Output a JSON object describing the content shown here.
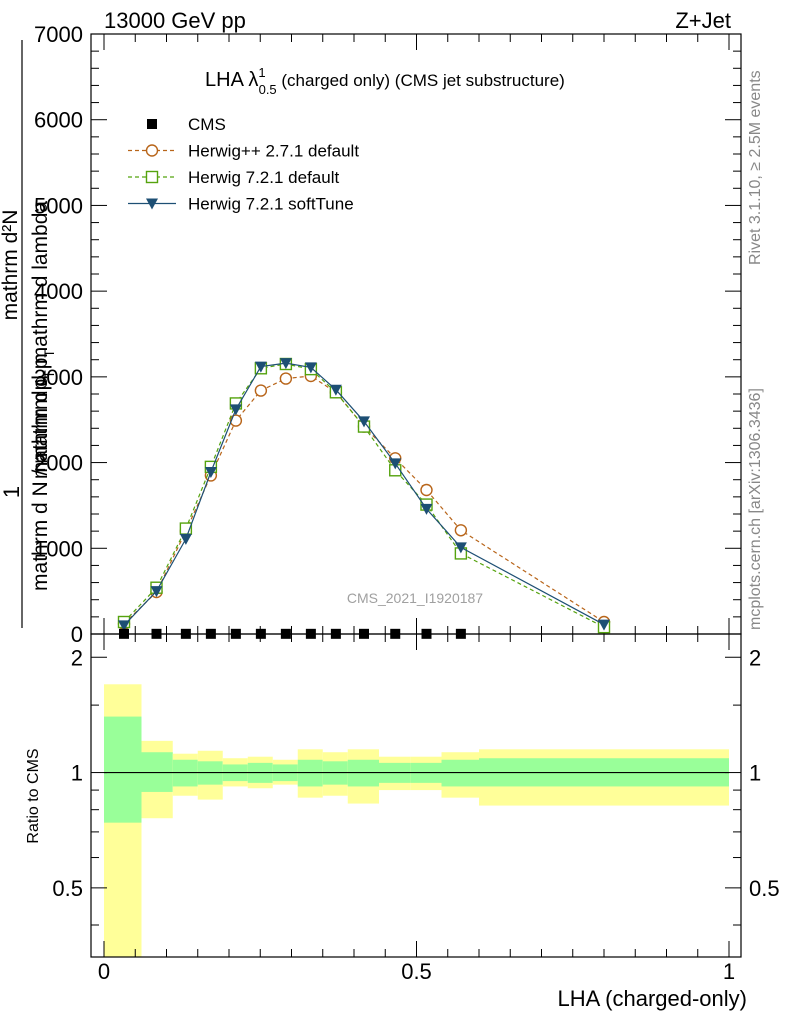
{
  "header": {
    "left": "13000 GeV pp",
    "right": "Z+Jet"
  },
  "side_labels": {
    "rivet": "Rivet 3.1.10, ≥ 2.5M events",
    "mcplots": "mcplots.cern.ch [arXiv:1306.3436]"
  },
  "watermark": "CMS_2021_I1920187",
  "chart_data": [
    {
      "type": "line",
      "title": {
        "prefix": "LHA λ",
        "sup": "1",
        "sub": "0.5",
        "suffix": " (charged only) (CMS jet substructure)"
      },
      "ylabel_one": "1",
      "ylabel_top": "mathrm d²N",
      "ylabel_top_tail": "mathrm dp",
      "ylabel_top_sub": "T",
      "ylabel_top_tail2": " mathrm d lambda",
      "ylabel_bottom": "mathrm d N / mathrm d p",
      "ylabel_bottom_sub": "T",
      "xlim": [
        0,
        1
      ],
      "ylim": [
        0,
        7000
      ],
      "yticks": [
        0,
        1000,
        2000,
        3000,
        4000,
        5000,
        6000,
        7000
      ],
      "ytick_labels": [
        "0",
        "1000",
        "2000",
        "3000",
        "4000",
        "5000",
        "6000",
        "7000"
      ],
      "legend": {
        "position": "top-left"
      },
      "series": [
        {
          "name": "CMS",
          "color": "#000000",
          "marker": "square-filled",
          "x": [
            0.032,
            0.084,
            0.131,
            0.171,
            0.211,
            0.251,
            0.291,
            0.331,
            0.371,
            0.416,
            0.466,
            0.516,
            0.571
          ],
          "y": [
            2,
            2,
            2,
            2,
            2,
            2,
            2,
            2,
            2,
            2,
            2,
            2,
            2
          ]
        },
        {
          "name": "Herwig++ 2.7.1 default",
          "color": "#b8651a",
          "marker": "circle-open",
          "dash": "4,3",
          "x": [
            0.032,
            0.084,
            0.131,
            0.171,
            0.211,
            0.251,
            0.291,
            0.331,
            0.371,
            0.416,
            0.466,
            0.516,
            0.571,
            0.8
          ],
          "y": [
            120,
            490,
            1200,
            1850,
            2490,
            2840,
            2980,
            3010,
            2820,
            2420,
            2050,
            1680,
            1210,
            140
          ]
        },
        {
          "name": "Herwig 7.2.1 default",
          "color": "#55a30e",
          "marker": "square-open",
          "dash": "4,3",
          "x": [
            0.032,
            0.084,
            0.131,
            0.171,
            0.211,
            0.251,
            0.291,
            0.331,
            0.371,
            0.416,
            0.466,
            0.516,
            0.571,
            0.8
          ],
          "y": [
            140,
            540,
            1230,
            1950,
            2690,
            3100,
            3150,
            3090,
            2820,
            2420,
            1910,
            1510,
            940,
            80
          ]
        },
        {
          "name": "Herwig 7.2.1 softTune",
          "color": "#1d4f74",
          "marker": "triangle-down-filled",
          "dash": "",
          "x": [
            0.032,
            0.084,
            0.131,
            0.171,
            0.211,
            0.251,
            0.291,
            0.331,
            0.371,
            0.416,
            0.466,
            0.516,
            0.571,
            0.8
          ],
          "y": [
            100,
            500,
            1110,
            1890,
            2620,
            3120,
            3160,
            3110,
            2850,
            2480,
            1990,
            1460,
            1010,
            110
          ]
        }
      ]
    },
    {
      "type": "area",
      "ylabel": "Ratio to CMS",
      "xlabel": "LHA (charged-only)",
      "xlim": [
        0,
        1
      ],
      "ylim": [
        0.33,
        2.3
      ],
      "xticks": [
        0,
        0.5,
        1
      ],
      "xtick_labels": [
        "0",
        "0.5",
        "1"
      ],
      "yticks": [
        0.5,
        1,
        2
      ],
      "ytick_labels": [
        "0.5",
        "1",
        "2"
      ],
      "bands": {
        "x_edges": [
          0,
          0.06,
          0.11,
          0.15,
          0.19,
          0.23,
          0.27,
          0.31,
          0.35,
          0.39,
          0.44,
          0.49,
          0.54,
          0.6,
          1.0
        ],
        "outer_color": "#ffff99",
        "inner_color": "#99ff99",
        "outer_low": [
          0.0,
          0.76,
          0.87,
          0.85,
          0.92,
          0.91,
          0.93,
          0.86,
          0.87,
          0.83,
          0.9,
          0.9,
          0.86,
          0.82
        ],
        "outer_high": [
          1.7,
          1.21,
          1.12,
          1.14,
          1.09,
          1.1,
          1.08,
          1.15,
          1.13,
          1.15,
          1.1,
          1.1,
          1.13,
          1.15
        ],
        "inner_low": [
          0.74,
          0.89,
          0.92,
          0.93,
          0.95,
          0.94,
          0.95,
          0.92,
          0.93,
          0.92,
          0.94,
          0.94,
          0.92,
          0.92
        ],
        "inner_high": [
          1.4,
          1.13,
          1.08,
          1.07,
          1.05,
          1.06,
          1.05,
          1.08,
          1.07,
          1.08,
          1.06,
          1.06,
          1.08,
          1.09
        ]
      },
      "reference_line": 1
    }
  ]
}
